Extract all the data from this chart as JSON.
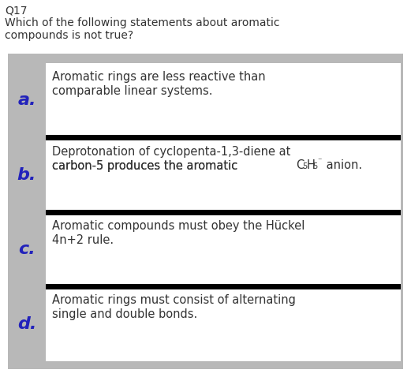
{
  "title_line1": "Q17",
  "title_line2": "Which of the following statements about aromatic",
  "title_line3": "compounds is not true?",
  "bg_color": "#b8b8b8",
  "inner_box_color": "#ffffff",
  "separator_color": "#000000",
  "question_text_color": "#333333",
  "label_color": "#2222bb",
  "fig_w": 5.21,
  "fig_h": 4.78,
  "dpi": 100,
  "options": [
    {
      "label": "a.",
      "line1": "Aromatic rings are less reactive than",
      "line2": "comparable linear systems.",
      "special": false
    },
    {
      "label": "b.",
      "line1": "Deprotonation of cyclopenta-1,3-diene at",
      "line2_prefix": "carbon-5 produces the aromatic ",
      "line2_formula": true,
      "special": true
    },
    {
      "label": "c.",
      "line1": "Aromatic compounds must obey the Hückel",
      "line2": "4n+2 rule.",
      "special": false
    },
    {
      "label": "d.",
      "line1": "Aromatic rings must consist of alternating",
      "line2": "single and double bonds.",
      "special": false
    }
  ]
}
